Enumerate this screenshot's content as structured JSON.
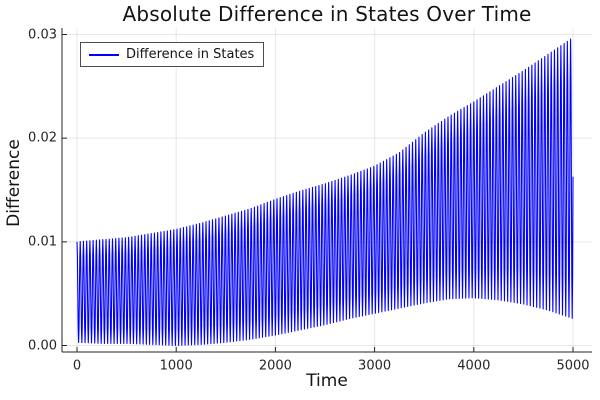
{
  "chart_data": {
    "type": "line",
    "title": "Absolute Difference in States Over Time",
    "xlabel": "Time",
    "ylabel": "Difference",
    "xlim": [
      0,
      5000
    ],
    "ylim": [
      0.0,
      0.03
    ],
    "xticks": [
      0,
      1000,
      2000,
      3000,
      4000,
      5000
    ],
    "yticks": [
      0.0,
      0.01,
      0.02,
      0.03
    ],
    "grid": true,
    "background": "#ffffff",
    "grid_color": "rgba(0,0,0,0.09)",
    "axis_color": "#262626",
    "legend": {
      "position": "top-left",
      "entries": [
        {
          "label": "Difference in States",
          "color": "#0000ff"
        }
      ]
    },
    "series": [
      {
        "name": "Difference in States",
        "color": "#0000ff",
        "style": "rapid oscillation between a growing upper envelope and a slowly varying lower envelope",
        "oscillation_period": 32.52,
        "envelope_t": [
          0,
          250,
          500,
          750,
          1000,
          1250,
          1500,
          1750,
          2000,
          2250,
          2500,
          2750,
          3000,
          3250,
          3500,
          3750,
          4000,
          4250,
          4500,
          4750,
          5000
        ],
        "envelope_upper": [
          0.01,
          0.0102,
          0.0104,
          0.0108,
          0.0112,
          0.0118,
          0.0125,
          0.0132,
          0.0141,
          0.0149,
          0.0156,
          0.0164,
          0.0173,
          0.0186,
          0.0205,
          0.0221,
          0.0235,
          0.025,
          0.0265,
          0.0281,
          0.0297
        ],
        "envelope_lower": [
          0.0003,
          0.0002,
          0.0002,
          0.0001,
          0.0,
          0.0001,
          0.0003,
          0.0006,
          0.001,
          0.0015,
          0.002,
          0.0026,
          0.0031,
          0.0036,
          0.0041,
          0.0045,
          0.0046,
          0.0044,
          0.004,
          0.0034,
          0.0026
        ]
      }
    ]
  }
}
